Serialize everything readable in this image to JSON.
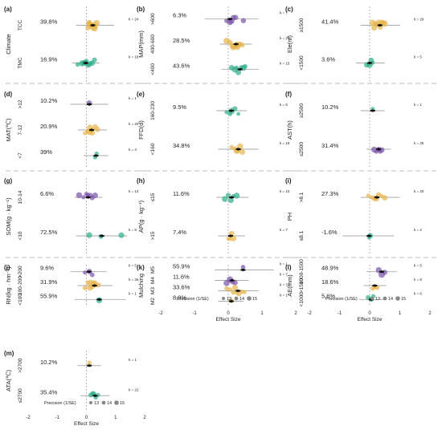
{
  "colors": {
    "purple": "#7B52AB",
    "yellow": "#E6B34A",
    "green": "#2DAE8A",
    "median": "#111111",
    "gridline": "#999999",
    "separator": "#BDBDBD"
  },
  "xaxis": {
    "ticks": [
      -2,
      -1,
      0,
      1,
      2
    ],
    "tick_labels": [
      "-2",
      "-1",
      "0",
      "1",
      "2"
    ],
    "label": "Effect Size"
  },
  "legend": {
    "title": "Precision (1/SE)",
    "items": [
      "13",
      "14",
      "15"
    ]
  },
  "chart_data": [
    {
      "id": "a",
      "panel_label": "(a)",
      "type": "scatter",
      "ylabel": "Climate",
      "xlim": [
        -2,
        2
      ],
      "groups": [
        {
          "name": "TCC",
          "pct": "39.8%",
          "k": "k = 24",
          "color": "yellow",
          "effect": 0.22,
          "ci": [
            -0.35,
            0.95
          ],
          "points": [
            0.05,
            0.1,
            0.15,
            0.2,
            0.25,
            0.3,
            0.35,
            0.12,
            0.18,
            0.28,
            0.22,
            0.08
          ]
        },
        {
          "name": "TMC",
          "pct": "16.9%",
          "k": "k = 18",
          "color": "green",
          "effect": -0.02,
          "ci": [
            -0.5,
            0.45
          ],
          "points": [
            -0.3,
            -0.15,
            -0.05,
            0.0,
            0.05,
            0.1,
            0.15,
            -0.1,
            0.2,
            0.28
          ]
        }
      ]
    },
    {
      "id": "b",
      "panel_label": "(b)",
      "type": "scatter",
      "ylabel": "MAP(mm)",
      "xlim": [
        -2,
        2
      ],
      "groups": [
        {
          "name": ">600",
          "pct": "6.3%",
          "k": "k = 7",
          "color": "purple",
          "effect": 0.05,
          "ci": [
            -0.7,
            0.9
          ],
          "points": [
            -0.05,
            0.05,
            0.1,
            0.15,
            0.22,
            0.45
          ]
        },
        {
          "name": "400-600",
          "pct": "28.5%",
          "k": "k = 20",
          "color": "yellow",
          "effect": 0.23,
          "ci": [
            -0.25,
            0.7
          ],
          "points": [
            -0.05,
            0.05,
            0.12,
            0.2,
            0.28,
            0.35,
            0.42,
            0.15,
            0.25,
            0.3
          ]
        },
        {
          "name": "<400",
          "pct": "43.6%",
          "k": "k = 15",
          "color": "green",
          "effect": 0.35,
          "ci": [
            -0.2,
            0.9
          ],
          "points": [
            0.1,
            0.2,
            0.3,
            0.38,
            0.45,
            0.25,
            0.5
          ]
        }
      ]
    },
    {
      "id": "c",
      "panel_label": "(c)",
      "type": "scatter",
      "ylabel": "Ele(m)",
      "xlim": [
        -2,
        2
      ],
      "groups": [
        {
          "name": "≥1500",
          "pct": "41.4%",
          "k": "k = 29",
          "color": "yellow",
          "effect": 0.34,
          "ci": [
            -0.3,
            1.0
          ],
          "points": [
            0.1,
            0.2,
            0.3,
            0.35,
            0.4,
            0.45,
            0.25,
            0.5,
            0.15
          ]
        },
        {
          "name": "<1500",
          "pct": "3.6%",
          "k": "k = 5",
          "color": "green",
          "effect": 0.0,
          "ci": [
            -0.45,
            0.5
          ],
          "points": [
            -0.1,
            0.0,
            0.05,
            0.1
          ]
        }
      ]
    },
    {
      "id": "d",
      "panel_label": "(d)",
      "type": "scatter",
      "ylabel": "MAT(℃)",
      "xlim": [
        -2,
        2
      ],
      "groups": [
        {
          "name": ">12",
          "pct": "10.2%",
          "k": "k = 1",
          "color": "purple",
          "effect": 0.1,
          "ci": [
            -0.55,
            0.75
          ],
          "points": [
            0.1
          ]
        },
        {
          "name": "7-12",
          "pct": "20.9%",
          "k": "k = 20",
          "color": "yellow",
          "effect": 0.18,
          "ci": [
            -0.3,
            0.7
          ],
          "points": [
            -0.05,
            0.05,
            0.1,
            0.15,
            0.22,
            0.3,
            0.38,
            0.12,
            0.2
          ]
        },
        {
          "name": "<7",
          "pct": "39%",
          "k": "k = 4",
          "color": "green",
          "effect": 0.33,
          "ci": [
            -0.1,
            0.75
          ],
          "points": [
            0.3,
            0.35
          ]
        }
      ]
    },
    {
      "id": "e",
      "panel_label": "(e)",
      "type": "scatter",
      "ylabel": "FFD(d)",
      "xlim": [
        -2,
        2
      ],
      "groups": [
        {
          "name": "160-230",
          "pct": "9.5%",
          "k": "k = 6",
          "color": "green",
          "effect": 0.09,
          "ci": [
            -0.35,
            0.55
          ],
          "points": [
            -0.05,
            0.05,
            0.1,
            0.2,
            0.3
          ]
        },
        {
          "name": "<160",
          "pct": "34.8%",
          "k": "k = 18",
          "color": "yellow",
          "effect": 0.3,
          "ci": [
            -0.3,
            0.9
          ],
          "points": [
            0.1,
            0.2,
            0.28,
            0.35,
            0.42,
            0.25
          ]
        }
      ]
    },
    {
      "id": "f",
      "panel_label": "(f)",
      "type": "scatter",
      "ylabel": "AST(h)",
      "xlim": [
        -2,
        2
      ],
      "groups": [
        {
          "name": "≥2500",
          "pct": "10.2%",
          "k": "k = 1",
          "color": "green",
          "effect": 0.1,
          "ci": [
            -0.3,
            0.5
          ],
          "points": [
            0.1
          ]
        },
        {
          "name": "≤2500",
          "pct": "31.4%",
          "k": "k = 25",
          "color": "purple",
          "effect": 0.3,
          "ci": [
            -0.1,
            0.7
          ],
          "points": [
            0.15,
            0.22,
            0.3,
            0.35,
            0.4,
            0.28
          ]
        }
      ]
    },
    {
      "id": "g",
      "panel_label": "(g)",
      "type": "scatter",
      "ylabel": "SOM(g · kg⁻¹)",
      "xlim": [
        -2,
        2
      ],
      "groups": [
        {
          "name": "10-14",
          "pct": "6.6%",
          "k": "k = 13",
          "color": "purple",
          "effect": 0.06,
          "ci": [
            -0.4,
            0.55
          ],
          "points": [
            -0.25,
            -0.1,
            0.0,
            0.05,
            0.12,
            0.2,
            0.3
          ]
        },
        {
          "name": "<10",
          "pct": "72.5%",
          "k": "k = 8",
          "color": "green",
          "effect": 0.53,
          "ci": [
            -0.35,
            1.4
          ],
          "points": [
            0.1,
            0.5,
            1.2
          ]
        }
      ]
    },
    {
      "id": "h",
      "panel_label": "(h)",
      "type": "scatter",
      "ylabel": "AP(g · kg⁻¹)",
      "xlim": [
        -2,
        2
      ],
      "groups": [
        {
          "name": "≤15",
          "pct": "11.6%",
          "k": "k = 10",
          "color": "green",
          "effect": 0.1,
          "ci": [
            -0.35,
            0.6
          ],
          "points": [
            -0.1,
            0.0,
            0.08,
            0.15,
            0.25
          ]
        },
        {
          "name": ">15",
          "pct": "7.4%",
          "k": "k = 7",
          "color": "yellow",
          "effect": 0.07,
          "ci": [
            -0.3,
            0.5
          ],
          "points": [
            0.0,
            0.05,
            0.1,
            0.15
          ]
        }
      ]
    },
    {
      "id": "i",
      "panel_label": "(i)",
      "type": "scatter",
      "ylabel": "PH",
      "xlim": [
        -2,
        2
      ],
      "groups": [
        {
          "name": ">8.1",
          "pct": "27.3%",
          "k": "k = 20",
          "color": "yellow",
          "effect": 0.24,
          "ci": [
            -0.3,
            1.0
          ],
          "points": [
            -0.05,
            0.05,
            0.15,
            0.22,
            0.3,
            0.4,
            0.5,
            0.18
          ]
        },
        {
          "name": "≤8.1",
          "pct": "-1.6%",
          "k": "k = 2",
          "color": "green",
          "effect": -0.02,
          "ci": [
            -0.9,
            0.8
          ],
          "points": [
            -0.02,
            0.02
          ]
        }
      ]
    },
    {
      "id": "j",
      "panel_label": "(j)",
      "type": "scatter",
      "ylabel": "RN(kg · hm⁻²)",
      "xlim": [
        -2,
        2
      ],
      "groups": [
        {
          "name": ">200",
          "pct": "9.6%",
          "k": "k = 5",
          "color": "purple",
          "effect": 0.09,
          "ci": [
            -0.55,
            0.7
          ],
          "points": [
            -0.05,
            0.1,
            0.2
          ]
        },
        {
          "name": "100-200",
          "pct": "31.9%",
          "k": "k = 36",
          "color": "yellow",
          "effect": 0.28,
          "ci": [
            -0.3,
            0.9
          ],
          "points": [
            -0.05,
            0.05,
            0.12,
            0.2,
            0.28,
            0.35,
            0.42,
            0.15,
            0.25
          ]
        },
        {
          "name": "<100",
          "pct": "55.9%",
          "k": "k = 1",
          "color": "green",
          "effect": 0.44,
          "ci": [
            -0.4,
            1.35
          ],
          "points": [
            0.44
          ]
        }
      ]
    },
    {
      "id": "k",
      "panel_label": "(k)",
      "type": "scatter",
      "ylabel": "Mulching",
      "xlim": [
        -2,
        2
      ],
      "groups": [
        {
          "name": "M5",
          "pct": "55.9%",
          "k": "k = 1",
          "color": "purple",
          "effect": 0.44,
          "ci": [
            -0.4,
            1.35
          ],
          "points": [
            0.44
          ]
        },
        {
          "name": "M4",
          "pct": "11.6%",
          "k": "k = 7",
          "color": "purple",
          "effect": 0.11,
          "ci": [
            -0.4,
            0.6
          ],
          "points": [
            -0.05,
            0.05,
            0.12,
            0.2
          ]
        },
        {
          "name": "M3",
          "pct": "33.6%",
          "k": "k = 33",
          "color": "yellow",
          "effect": 0.29,
          "ci": [
            -0.3,
            0.9
          ],
          "points": [
            -0.05,
            0.05,
            0.15,
            0.25,
            0.32,
            0.4,
            0.48,
            0.2
          ]
        },
        {
          "name": "M2",
          "pct": "8.9%",
          "k": "k = 1",
          "color": "yellow",
          "effect": 0.09,
          "ci": [
            -0.3,
            0.45
          ],
          "points": [
            0.09
          ]
        }
      ]
    },
    {
      "id": "l",
      "panel_label": "(l)",
      "type": "scatter",
      "ylabel": "AE(mm)",
      "xlim": [
        -2,
        2
      ],
      "groups": [
        {
          "name": "1000-1500",
          "pct": "48.9%",
          "k": "k = 5",
          "color": "purple",
          "effect": 0.4,
          "ci": [
            -0.1,
            0.9
          ],
          "points": [
            0.3,
            0.4,
            0.5
          ]
        },
        {
          "name": ">1500",
          "pct": "18.6%",
          "k": "k = 8",
          "color": "yellow",
          "effect": 0.17,
          "ci": [
            -0.2,
            0.55
          ],
          "points": [
            0.1,
            0.17,
            0.25
          ]
        },
        {
          "name": "<1000",
          "pct": "5.6%",
          "k": "k = 6",
          "color": "green",
          "effect": 0.05,
          "ci": [
            -0.35,
            0.45
          ],
          "points": [
            -0.05,
            0.05,
            0.12
          ]
        }
      ]
    },
    {
      "id": "m",
      "panel_label": "(m)",
      "type": "scatter",
      "ylabel": "ATA(℃)",
      "xlim": [
        -2,
        2
      ],
      "groups": [
        {
          "name": ">2700",
          "pct": "10.2%",
          "k": "k = 1",
          "color": "yellow",
          "effect": 0.1,
          "ci": [
            -0.3,
            0.5
          ],
          "points": [
            0.1
          ]
        },
        {
          "name": "≤2700",
          "pct": "35.4%",
          "k": "k = 22",
          "color": "green",
          "effect": 0.3,
          "ci": [
            -0.2,
            0.8
          ],
          "points": [
            0.15,
            0.25,
            0.32,
            0.4,
            0.22
          ]
        }
      ]
    }
  ]
}
